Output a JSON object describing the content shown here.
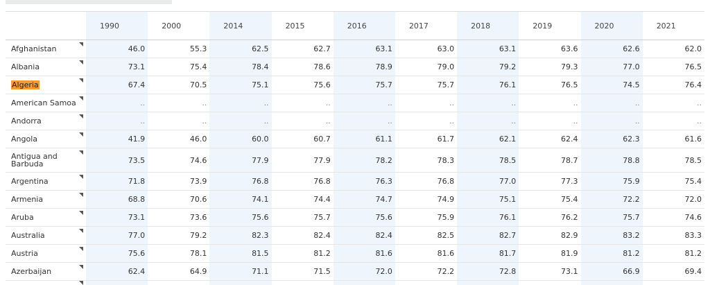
{
  "years": [
    "1990",
    "2000",
    "2014",
    "2015",
    "2016",
    "2017",
    "2018",
    "2019",
    "2020",
    "2021"
  ],
  "rows": [
    {
      "name": "Afghanistan",
      "values": [
        "46.0",
        "55.3",
        "62.5",
        "62.7",
        "63.1",
        "63.0",
        "63.1",
        "63.6",
        "62.6",
        "62.0"
      ]
    },
    {
      "name": "Albania",
      "values": [
        "73.1",
        "75.4",
        "78.4",
        "78.6",
        "78.9",
        "79.0",
        "79.2",
        "79.3",
        "77.0",
        "76.5"
      ]
    },
    {
      "name": "Algeria",
      "values": [
        "67.4",
        "70.5",
        "75.1",
        "75.6",
        "75.7",
        "75.7",
        "76.1",
        "76.5",
        "74.5",
        "76.4"
      ]
    },
    {
      "name": "American Samoa",
      "values": [
        "..",
        "..",
        "..",
        "..",
        "..",
        "..",
        "..",
        "..",
        "..",
        ".."
      ]
    },
    {
      "name": "Andorra",
      "values": [
        "..",
        "..",
        "..",
        "..",
        "..",
        "..",
        "..",
        "..",
        "..",
        ".."
      ]
    },
    {
      "name": "Angola",
      "values": [
        "41.9",
        "46.0",
        "60.0",
        "60.7",
        "61.1",
        "61.7",
        "62.1",
        "62.4",
        "62.3",
        "61.6"
      ]
    },
    {
      "name": "Antigua and Barbuda",
      "values": [
        "73.5",
        "74.6",
        "77.9",
        "77.9",
        "78.2",
        "78.3",
        "78.5",
        "78.7",
        "78.8",
        "78.5"
      ]
    },
    {
      "name": "Argentina",
      "values": [
        "71.8",
        "73.9",
        "76.8",
        "76.8",
        "76.3",
        "76.8",
        "77.0",
        "77.3",
        "75.9",
        "75.4"
      ]
    },
    {
      "name": "Armenia",
      "values": [
        "68.8",
        "70.6",
        "74.1",
        "74.4",
        "74.7",
        "74.9",
        "75.1",
        "75.4",
        "72.2",
        "72.0"
      ]
    },
    {
      "name": "Aruba",
      "values": [
        "73.1",
        "73.6",
        "75.6",
        "75.7",
        "75.6",
        "75.9",
        "76.1",
        "76.2",
        "75.7",
        "74.6"
      ]
    },
    {
      "name": "Australia",
      "values": [
        "77.0",
        "79.2",
        "82.3",
        "82.4",
        "82.4",
        "82.5",
        "82.7",
        "82.9",
        "83.2",
        "83.3"
      ]
    },
    {
      "name": "Austria",
      "values": [
        "75.6",
        "78.1",
        "81.5",
        "81.2",
        "81.6",
        "81.6",
        "81.7",
        "81.9",
        "81.2",
        "81.2"
      ]
    },
    {
      "name": "Azerbaijan",
      "values": [
        "62.4",
        "64.9",
        "71.1",
        "71.5",
        "72.0",
        "72.2",
        "72.8",
        "73.1",
        "66.9",
        "69.4"
      ]
    }
  ],
  "highlighted_row": "Algeria",
  "colors": {
    "shade": "#eef5fc",
    "highlight": "#f39c33"
  }
}
